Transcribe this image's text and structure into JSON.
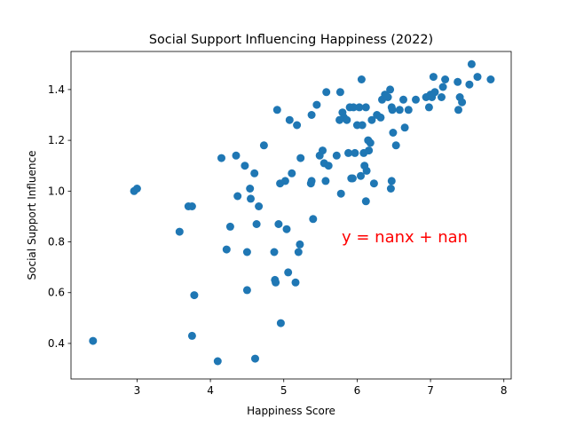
{
  "chart_data": {
    "type": "scatter",
    "title": "Social Support Influencing Happiness (2022)",
    "xlabel": "Happiness Score",
    "ylabel": "Social Support Influence",
    "xlim": [
      2.1,
      8.1
    ],
    "ylim": [
      0.26,
      1.55
    ],
    "xticks": [
      3,
      4,
      5,
      6,
      7,
      8
    ],
    "yticks": [
      0.4,
      0.6,
      0.8,
      1.0,
      1.2,
      1.4
    ],
    "xtick_labels": [
      "3",
      "4",
      "5",
      "6",
      "7",
      "8"
    ],
    "ytick_labels": [
      "0.4",
      "0.6",
      "0.8",
      "1.0",
      "1.2",
      "1.4"
    ],
    "grid": false,
    "point_color": "#1f77b4",
    "annotation": {
      "text": "y = nanx + nan",
      "color": "#ff0000"
    },
    "series": [
      {
        "points": [
          [
            2.4,
            0.41
          ],
          [
            2.96,
            1.0
          ],
          [
            3.0,
            1.01
          ],
          [
            3.58,
            0.84
          ],
          [
            3.7,
            0.94
          ],
          [
            3.75,
            0.94
          ],
          [
            3.75,
            0.43
          ],
          [
            3.78,
            0.59
          ],
          [
            4.1,
            0.33
          ],
          [
            4.15,
            1.13
          ],
          [
            4.22,
            0.77
          ],
          [
            4.27,
            0.86
          ],
          [
            4.35,
            1.14
          ],
          [
            4.37,
            0.98
          ],
          [
            4.47,
            1.1
          ],
          [
            4.5,
            0.76
          ],
          [
            4.5,
            0.61
          ],
          [
            4.54,
            1.01
          ],
          [
            4.55,
            0.97
          ],
          [
            4.6,
            1.07
          ],
          [
            4.61,
            0.34
          ],
          [
            4.63,
            0.87
          ],
          [
            4.66,
            0.94
          ],
          [
            4.73,
            1.18
          ],
          [
            4.87,
            0.76
          ],
          [
            4.88,
            0.65
          ],
          [
            4.89,
            0.64
          ],
          [
            4.91,
            1.32
          ],
          [
            4.93,
            0.87
          ],
          [
            4.95,
            1.03
          ],
          [
            4.96,
            0.48
          ],
          [
            5.02,
            1.04
          ],
          [
            5.04,
            0.85
          ],
          [
            5.06,
            0.68
          ],
          [
            5.08,
            1.28
          ],
          [
            5.11,
            1.07
          ],
          [
            5.16,
            0.64
          ],
          [
            5.18,
            1.26
          ],
          [
            5.2,
            0.76
          ],
          [
            5.22,
            0.79
          ],
          [
            5.23,
            1.13
          ],
          [
            5.37,
            1.03
          ],
          [
            5.38,
            1.04
          ],
          [
            5.38,
            1.3
          ],
          [
            5.4,
            0.89
          ],
          [
            5.45,
            1.34
          ],
          [
            5.49,
            1.14
          ],
          [
            5.53,
            1.16
          ],
          [
            5.55,
            1.11
          ],
          [
            5.57,
            1.04
          ],
          [
            5.58,
            1.39
          ],
          [
            5.61,
            1.1
          ],
          [
            5.72,
            1.14
          ],
          [
            5.76,
            1.28
          ],
          [
            5.77,
            1.39
          ],
          [
            5.78,
            0.99
          ],
          [
            5.8,
            1.31
          ],
          [
            5.82,
            1.29
          ],
          [
            5.86,
            1.28
          ],
          [
            5.88,
            1.15
          ],
          [
            5.9,
            1.33
          ],
          [
            5.92,
            1.05
          ],
          [
            5.94,
            1.05
          ],
          [
            5.95,
            1.33
          ],
          [
            5.97,
            1.15
          ],
          [
            6.0,
            1.26
          ],
          [
            6.03,
            1.33
          ],
          [
            6.05,
            1.06
          ],
          [
            6.06,
            1.44
          ],
          [
            6.07,
            1.26
          ],
          [
            6.09,
            1.15
          ],
          [
            6.1,
            1.1
          ],
          [
            6.12,
            1.33
          ],
          [
            6.12,
            0.96
          ],
          [
            6.13,
            1.08
          ],
          [
            6.15,
            1.2
          ],
          [
            6.16,
            1.16
          ],
          [
            6.18,
            1.19
          ],
          [
            6.2,
            1.28
          ],
          [
            6.23,
            1.03
          ],
          [
            6.27,
            1.3
          ],
          [
            6.32,
            1.29
          ],
          [
            6.34,
            1.36
          ],
          [
            6.38,
            1.38
          ],
          [
            6.42,
            1.37
          ],
          [
            6.45,
            1.4
          ],
          [
            6.46,
            1.01
          ],
          [
            6.47,
            1.33
          ],
          [
            6.47,
            1.04
          ],
          [
            6.48,
            1.32
          ],
          [
            6.49,
            1.23
          ],
          [
            6.53,
            1.18
          ],
          [
            6.58,
            1.32
          ],
          [
            6.63,
            1.36
          ],
          [
            6.65,
            1.25
          ],
          [
            6.7,
            1.32
          ],
          [
            6.8,
            1.36
          ],
          [
            6.94,
            1.37
          ],
          [
            6.98,
            1.33
          ],
          [
            7.0,
            1.38
          ],
          [
            7.02,
            1.37
          ],
          [
            7.04,
            1.45
          ],
          [
            7.06,
            1.39
          ],
          [
            7.15,
            1.37
          ],
          [
            7.17,
            1.41
          ],
          [
            7.2,
            1.44
          ],
          [
            7.37,
            1.43
          ],
          [
            7.38,
            1.32
          ],
          [
            7.4,
            1.37
          ],
          [
            7.43,
            1.35
          ],
          [
            7.53,
            1.42
          ],
          [
            7.56,
            1.5
          ],
          [
            7.64,
            1.45
          ],
          [
            7.82,
            1.44
          ]
        ]
      }
    ]
  }
}
